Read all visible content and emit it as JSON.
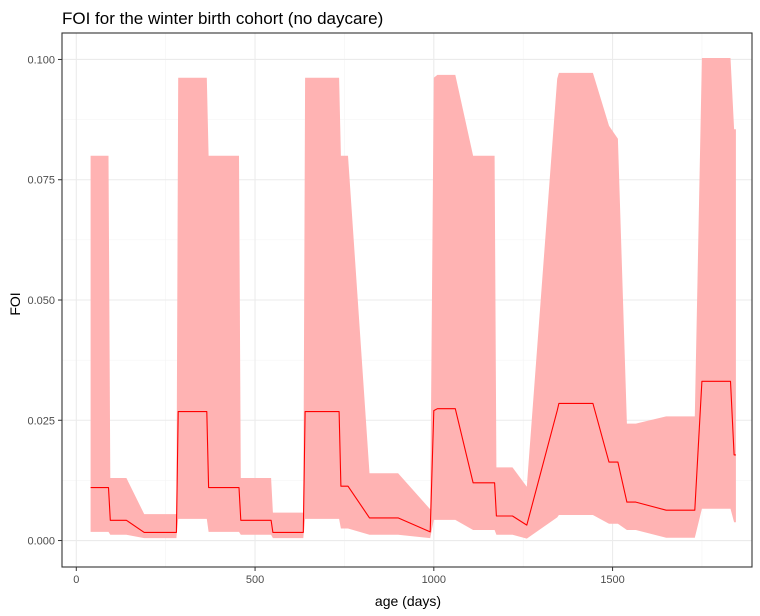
{
  "chart_data": {
    "type": "line",
    "title": "FOI for the winter birth cohort (no daycare)",
    "xlabel": "age (days)",
    "ylabel": "FOI",
    "xlim": [
      -40,
      1890
    ],
    "ylim": [
      -0.0055,
      0.1055
    ],
    "x_ticks": [
      0,
      500,
      1000,
      1500
    ],
    "x_tick_labels": [
      "0",
      "500",
      "1000",
      "1500"
    ],
    "y_ticks": [
      0.0,
      0.025,
      0.05,
      0.075,
      0.1
    ],
    "y_tick_labels": [
      "0.000",
      "0.025",
      "0.050",
      "0.075",
      "0.100"
    ],
    "grid": true,
    "colors": {
      "line": "#ff0000",
      "ribbon": "#ffb3b3",
      "panel_border": "#333333"
    },
    "series": [
      {
        "type": "line",
        "x": [
          40,
          90,
          95,
          140,
          190,
          280,
          285,
          365,
          370,
          455,
          460,
          545,
          550,
          635,
          640,
          650,
          735,
          740,
          760,
          820,
          900,
          990,
          1000,
          1010,
          1060,
          1110,
          1170,
          1175,
          1220,
          1260,
          1345,
          1350,
          1380,
          1445,
          1490,
          1515,
          1540,
          1565,
          1650,
          1730,
          1750,
          1760,
          1830,
          1840,
          1845
        ],
        "y": [
          0.011,
          0.011,
          0.0042,
          0.0042,
          0.0017,
          0.0017,
          0.0268,
          0.0268,
          0.011,
          0.011,
          0.0042,
          0.0042,
          0.0017,
          0.0017,
          0.0268,
          0.0268,
          0.0268,
          0.0113,
          0.0113,
          0.0047,
          0.0047,
          0.0018,
          0.027,
          0.0274,
          0.0274,
          0.012,
          0.012,
          0.0051,
          0.0051,
          0.0032,
          0.027,
          0.0285,
          0.0285,
          0.0285,
          0.0163,
          0.0163,
          0.008,
          0.008,
          0.0063,
          0.0063,
          0.0331,
          0.0331,
          0.0331,
          0.0178,
          0.0178
        ]
      },
      {
        "type": "ribbon",
        "x": [
          40,
          90,
          95,
          140,
          190,
          280,
          285,
          365,
          370,
          455,
          460,
          545,
          550,
          635,
          640,
          650,
          735,
          740,
          760,
          820,
          900,
          990,
          1000,
          1010,
          1060,
          1110,
          1170,
          1175,
          1220,
          1260,
          1345,
          1350,
          1380,
          1445,
          1490,
          1515,
          1540,
          1565,
          1650,
          1730,
          1750,
          1760,
          1830,
          1840,
          1845
        ],
        "ymin": [
          0.0018,
          0.0018,
          0.0012,
          0.0012,
          0.0005,
          0.0005,
          0.0045,
          0.0045,
          0.0018,
          0.0018,
          0.0012,
          0.0012,
          0.0005,
          0.0005,
          0.0045,
          0.0045,
          0.0045,
          0.0025,
          0.0025,
          0.0012,
          0.0012,
          0.0005,
          0.0043,
          0.0043,
          0.0043,
          0.0022,
          0.0022,
          0.0012,
          0.0012,
          0.0004,
          0.0048,
          0.0053,
          0.0053,
          0.0053,
          0.0035,
          0.0035,
          0.0022,
          0.0022,
          0.0006,
          0.0006,
          0.0066,
          0.0066,
          0.0066,
          0.0038,
          0.0038
        ],
        "ymax": [
          0.08,
          0.08,
          0.013,
          0.013,
          0.0055,
          0.0055,
          0.0962,
          0.0962,
          0.08,
          0.08,
          0.013,
          0.013,
          0.0058,
          0.0058,
          0.0962,
          0.0962,
          0.0962,
          0.08,
          0.08,
          0.014,
          0.014,
          0.0065,
          0.0962,
          0.0968,
          0.0968,
          0.08,
          0.08,
          0.0152,
          0.0152,
          0.0112,
          0.096,
          0.0972,
          0.0972,
          0.0972,
          0.0862,
          0.0835,
          0.0243,
          0.0243,
          0.0258,
          0.0258,
          0.1003,
          0.1003,
          0.1003,
          0.0855,
          0.0855
        ]
      }
    ]
  }
}
